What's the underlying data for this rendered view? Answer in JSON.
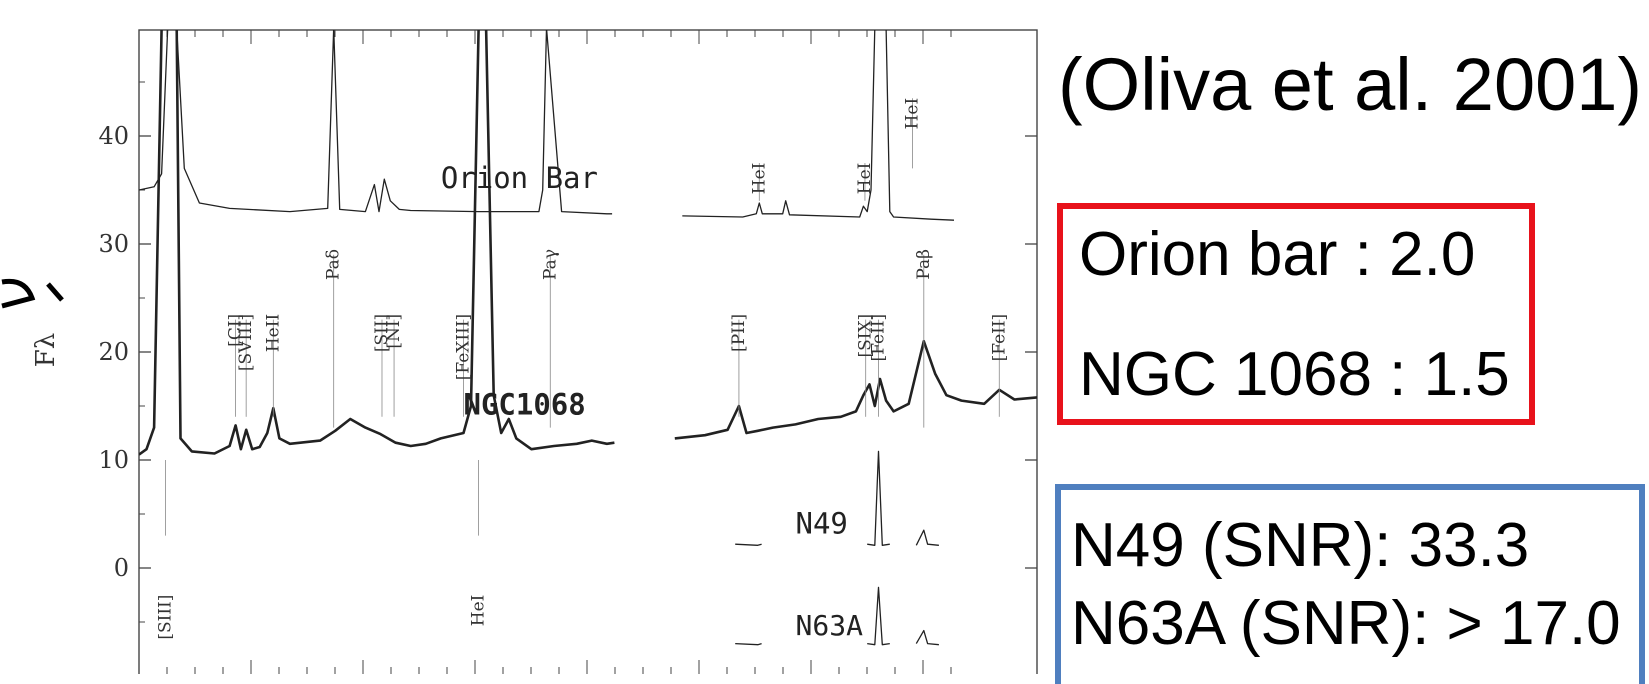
{
  "citation": "(Oliva et al. 2001)",
  "ratios_box": {
    "border_color": "#e8121b",
    "lines": [
      "Orion bar : 2.0",
      "NGC 1068 : 1.5"
    ]
  },
  "snr_box": {
    "border_color": "#4f7fbf",
    "lines": [
      "N49 (SNR): 33.3",
      "N63A (SNR): > 17.0"
    ]
  },
  "chart_data": {
    "type": "line",
    "ylabel": "Fλ",
    "ylim": [
      -9,
      50
    ],
    "yticks": [
      0,
      10,
      20,
      30,
      40
    ],
    "series": [
      {
        "name": "Orion Bar",
        "label": "Orion Bar",
        "weight": "thin",
        "segments": [
          [
            [
              0,
              35
            ],
            [
              0.02,
              35.3
            ],
            [
              0.03,
              36.5
            ],
            [
              0.038,
              50
            ],
            [
              0.05,
              50
            ],
            [
              0.06,
              37
            ],
            [
              0.08,
              33.8
            ],
            [
              0.12,
              33.3
            ],
            [
              0.2,
              33
            ],
            [
              0.25,
              33.3
            ],
            [
              0.258,
              50
            ],
            [
              0.266,
              33.2
            ],
            [
              0.3,
              33
            ],
            [
              0.312,
              35.5
            ],
            [
              0.318,
              33
            ],
            [
              0.325,
              36
            ],
            [
              0.333,
              34
            ],
            [
              0.345,
              33.2
            ],
            [
              0.36,
              33.1
            ],
            [
              0.45,
              33
            ],
            [
              0.53,
              33
            ],
            [
              0.535,
              35
            ],
            [
              0.54,
              50
            ],
            [
              0.56,
              33
            ],
            [
              0.62,
              32.8
            ],
            [
              0.627,
              32.8
            ]
          ],
          [
            [
              0.72,
              32.6
            ],
            [
              0.8,
              32.5
            ],
            [
              0.818,
              32.8
            ],
            [
              0.822,
              33.8
            ],
            [
              0.826,
              32.8
            ],
            [
              0.853,
              32.8
            ],
            [
              0.857,
              34
            ],
            [
              0.862,
              32.7
            ],
            [
              0.955,
              32.5
            ],
            [
              0.96,
              33.5
            ],
            [
              0.965,
              33
            ],
            [
              0.97,
              35
            ],
            [
              0.975,
              50
            ],
            [
              0.99,
              50
            ],
            [
              0.995,
              33
            ],
            [
              1.0,
              32.5
            ],
            [
              1.05,
              32.3
            ],
            [
              1.08,
              32.2
            ]
          ]
        ]
      },
      {
        "name": "NGC1068",
        "label": "NGC1068",
        "weight": "thick",
        "segments": [
          [
            [
              0,
              10.5
            ],
            [
              0.01,
              11
            ],
            [
              0.02,
              13
            ],
            [
              0.03,
              50
            ],
            [
              0.05,
              50
            ],
            [
              0.055,
              12
            ],
            [
              0.07,
              10.8
            ],
            [
              0.1,
              10.6
            ],
            [
              0.12,
              11.3
            ],
            [
              0.128,
              13.2
            ],
            [
              0.135,
              11
            ],
            [
              0.142,
              12.8
            ],
            [
              0.15,
              11
            ],
            [
              0.16,
              11.2
            ],
            [
              0.17,
              12.5
            ],
            [
              0.178,
              14.8
            ],
            [
              0.186,
              12
            ],
            [
              0.2,
              11.5
            ],
            [
              0.24,
              11.8
            ],
            [
              0.26,
              12.7
            ],
            [
              0.28,
              13.8
            ],
            [
              0.3,
              13
            ],
            [
              0.32,
              12.4
            ],
            [
              0.34,
              11.6
            ],
            [
              0.36,
              11.3
            ],
            [
              0.38,
              11.5
            ],
            [
              0.4,
              12
            ],
            [
              0.43,
              12.5
            ],
            [
              0.44,
              15
            ],
            [
              0.45,
              50
            ],
            [
              0.46,
              50
            ],
            [
              0.47,
              16
            ],
            [
              0.48,
              12.5
            ],
            [
              0.49,
              13.8
            ],
            [
              0.5,
              12
            ],
            [
              0.52,
              11
            ],
            [
              0.55,
              11.3
            ],
            [
              0.58,
              11.5
            ],
            [
              0.6,
              11.8
            ],
            [
              0.62,
              11.5
            ],
            [
              0.63,
              11.6
            ]
          ],
          [
            [
              0.71,
              12
            ],
            [
              0.75,
              12.3
            ],
            [
              0.78,
              12.8
            ],
            [
              0.795,
              15
            ],
            [
              0.805,
              12.5
            ],
            [
              0.82,
              12.7
            ],
            [
              0.84,
              13
            ],
            [
              0.87,
              13.3
            ],
            [
              0.9,
              13.8
            ],
            [
              0.93,
              14
            ],
            [
              0.95,
              14.5
            ],
            [
              0.96,
              16
            ],
            [
              0.968,
              17
            ],
            [
              0.975,
              15
            ],
            [
              0.982,
              17.5
            ],
            [
              0.99,
              15.5
            ],
            [
              1.0,
              14.5
            ],
            [
              1.02,
              15.2
            ],
            [
              1.04,
              21
            ],
            [
              1.055,
              18
            ],
            [
              1.07,
              16
            ],
            [
              1.09,
              15.5
            ],
            [
              1.12,
              15.2
            ],
            [
              1.14,
              16.5
            ],
            [
              1.16,
              15.6
            ],
            [
              1.19,
              15.8
            ]
          ]
        ]
      },
      {
        "name": "N49",
        "label": "N49",
        "weight": "thin",
        "segments": [
          [
            [
              0.79,
              2.2
            ],
            [
              0.82,
              2.1
            ],
            [
              0.825,
              2.2
            ]
          ],
          [
            [
              0.965,
              2.2
            ],
            [
              0.975,
              2.1
            ],
            [
              0.98,
              10.8
            ],
            [
              0.985,
              2.1
            ],
            [
              0.995,
              2.2
            ]
          ],
          [
            [
              1.03,
              2.1
            ],
            [
              1.04,
              3.5
            ],
            [
              1.045,
              2.2
            ],
            [
              1.06,
              2.1
            ]
          ]
        ]
      },
      {
        "name": "N63A",
        "label": "N63A",
        "weight": "thin",
        "segments": [
          [
            [
              0.79,
              -7
            ],
            [
              0.82,
              -7.1
            ],
            [
              0.825,
              -7
            ]
          ],
          [
            [
              0.965,
              -7
            ],
            [
              0.975,
              -7.1
            ],
            [
              0.98,
              -1.8
            ],
            [
              0.985,
              -7.1
            ],
            [
              0.995,
              -7
            ]
          ],
          [
            [
              1.03,
              -7
            ],
            [
              1.04,
              -5.8
            ],
            [
              1.045,
              -7
            ],
            [
              1.06,
              -7.1
            ]
          ]
        ]
      }
    ],
    "annotations": [
      {
        "text": "[SIII]",
        "x": 0.035,
        "side": "below"
      },
      {
        "text": "[CI]",
        "x": 0.128,
        "side": "above"
      },
      {
        "text": "[SVIII]",
        "x": 0.142,
        "side": "above"
      },
      {
        "text": "HeII",
        "x": 0.178,
        "side": "above"
      },
      {
        "text": "Paδ",
        "x": 0.258,
        "side": "above"
      },
      {
        "text": "[SII]",
        "x": 0.322,
        "side": "above"
      },
      {
        "text": "[NI]",
        "x": 0.338,
        "side": "above"
      },
      {
        "text": "[FeXIII]",
        "x": 0.43,
        "side": "above"
      },
      {
        "text": "HeI",
        "x": 0.45,
        "side": "below"
      },
      {
        "text": "Paγ",
        "x": 0.545,
        "side": "above"
      },
      {
        "text": "[PII]",
        "x": 0.795,
        "side": "above"
      },
      {
        "text": "HeI",
        "x": 0.822,
        "side": "above"
      },
      {
        "text": "[SIX]",
        "x": 0.963,
        "side": "above"
      },
      {
        "text": "HeI",
        "x": 0.962,
        "side": "above"
      },
      {
        "text": "[FeII]",
        "x": 0.98,
        "side": "above"
      },
      {
        "text": "HeI",
        "x": 1.025,
        "side": "above"
      },
      {
        "text": "Paβ",
        "x": 1.04,
        "side": "above"
      },
      {
        "text": "[FeII]",
        "x": 1.14,
        "side": "above"
      }
    ]
  }
}
